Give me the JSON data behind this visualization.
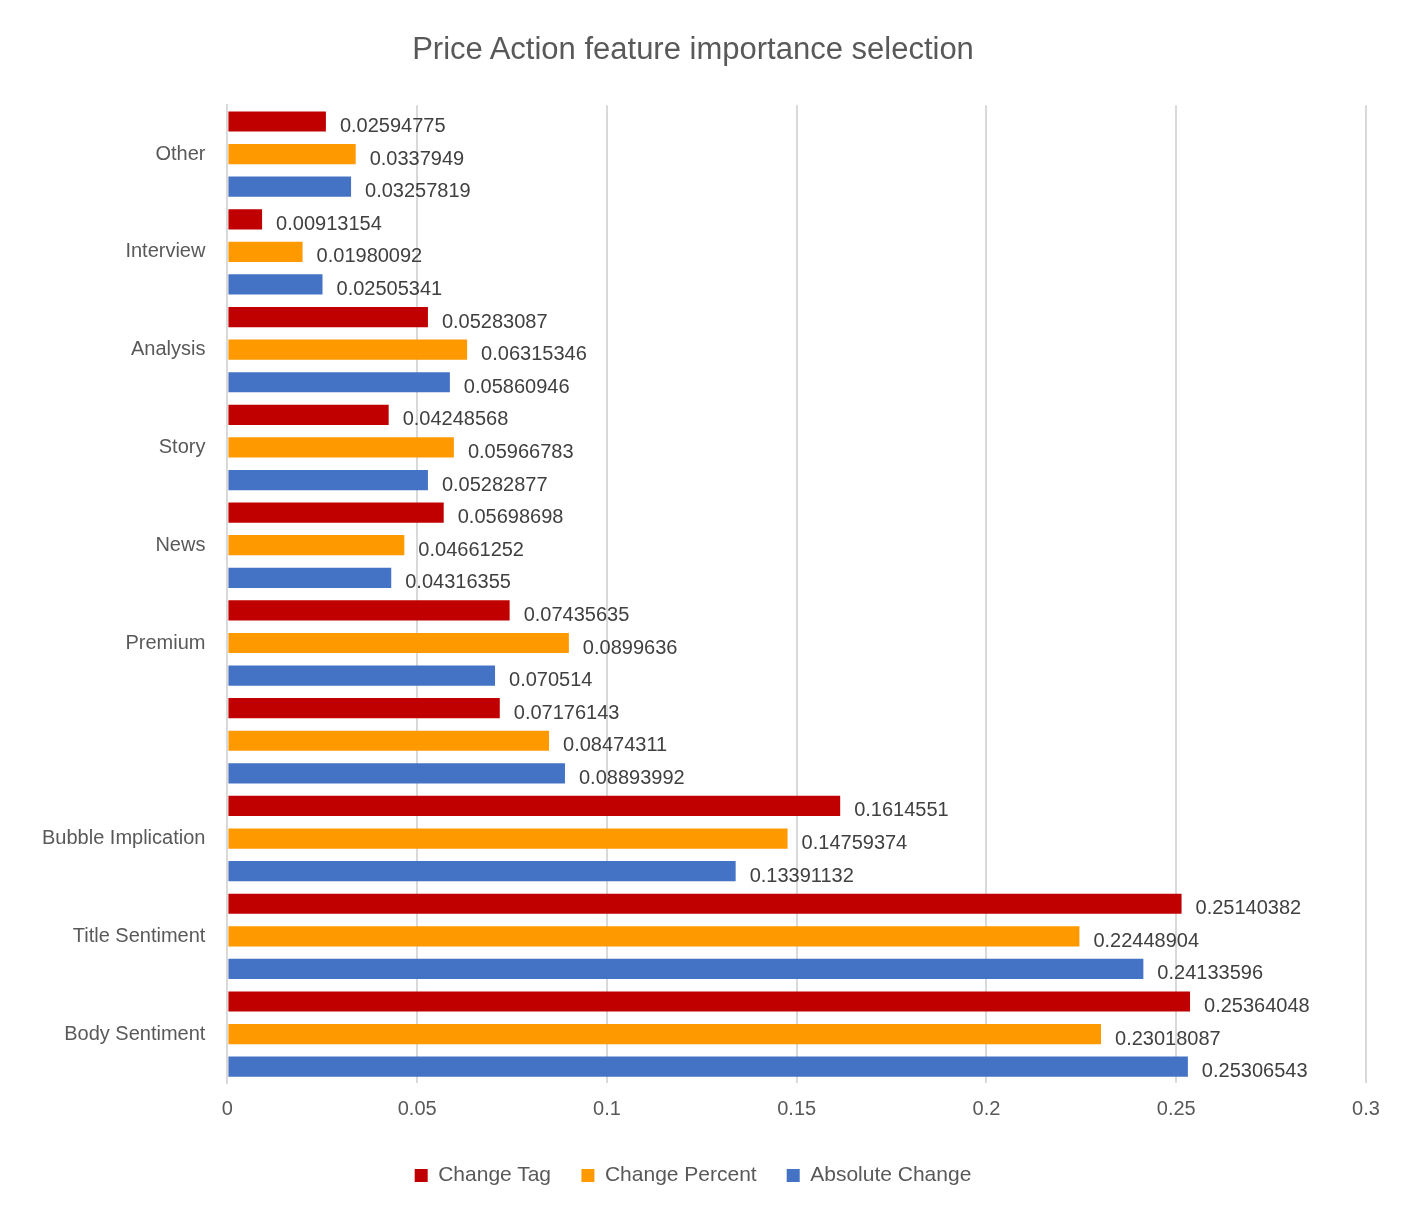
{
  "chart_data": {
    "type": "bar",
    "orientation": "horizontal",
    "title": "Price Action feature importance selection",
    "categories": [
      "Other",
      "Interview",
      "Analysis",
      "Story",
      "News",
      "Premium",
      null,
      "Bubble Implication",
      "Title Sentiment",
      "Body Sentiment"
    ],
    "series": [
      {
        "name": "Change Tag",
        "color": "#c00000",
        "values": [
          0.02594775,
          0.00913154,
          0.05283087,
          0.04248568,
          0.05698698,
          0.07435635,
          0.07176143,
          0.1614551,
          0.25140382,
          0.25364048
        ]
      },
      {
        "name": "Change Percent",
        "color": "#ff9900",
        "values": [
          0.0337949,
          0.01980092,
          0.06315346,
          0.05966783,
          0.04661252,
          0.0899636,
          0.08474311,
          0.14759374,
          0.22448904,
          0.23018087
        ]
      },
      {
        "name": "Absolute Change",
        "color": "#4472c4",
        "values": [
          0.03257819,
          0.02505341,
          0.05860946,
          0.05282877,
          0.04316355,
          0.070514,
          0.08893992,
          0.13391132,
          0.24133596,
          0.25306543
        ]
      }
    ],
    "xlim": [
      0,
      0.3
    ],
    "xticks": [
      0,
      0.05,
      0.1,
      0.15,
      0.2,
      0.25,
      0.3
    ],
    "grid": "x",
    "legend": "bottom",
    "data_labels": true
  }
}
